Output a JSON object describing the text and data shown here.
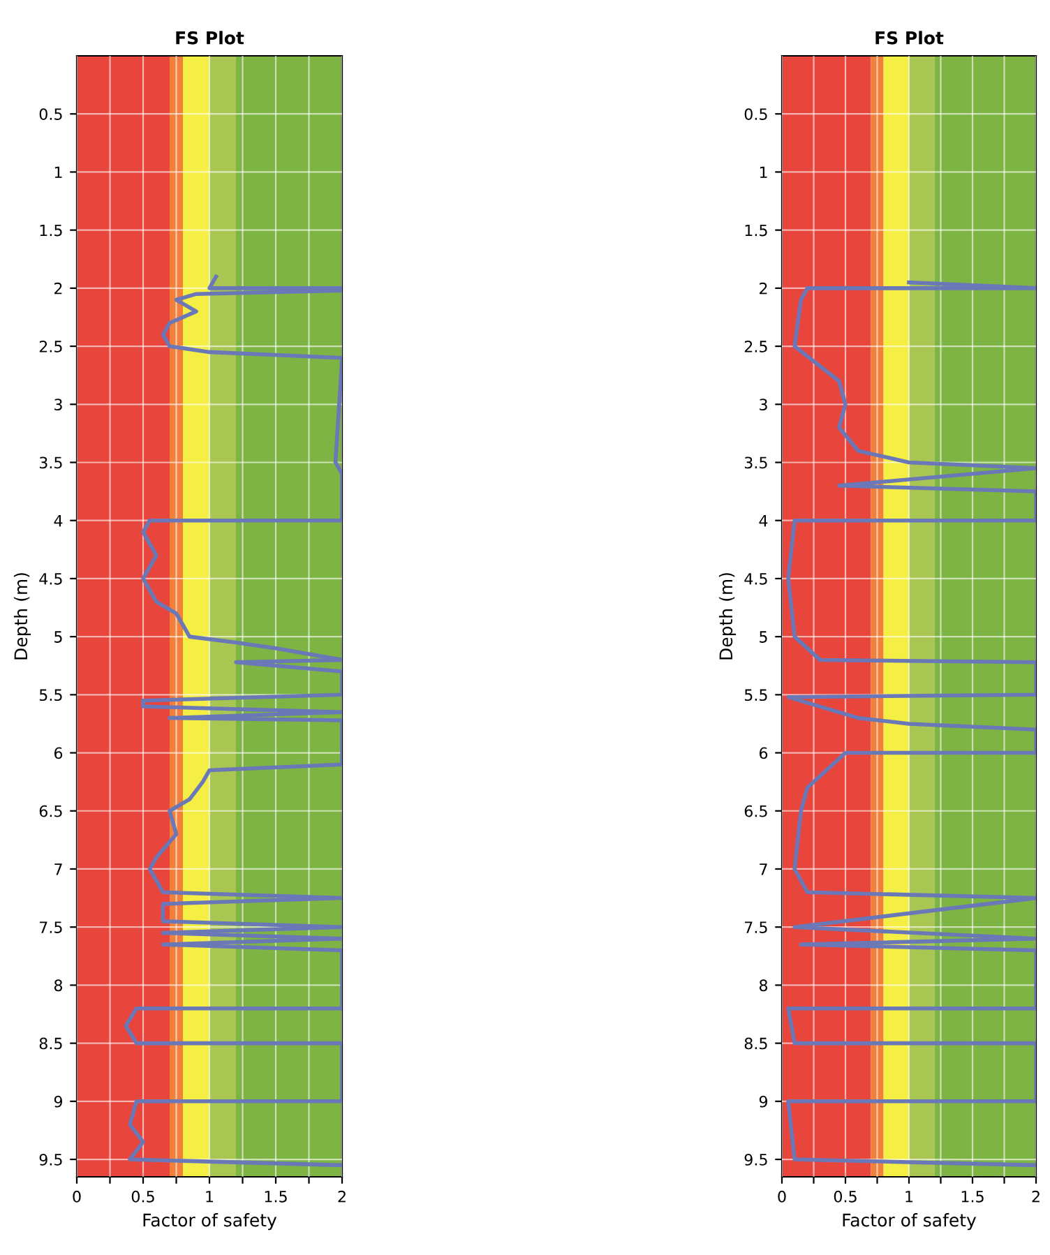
{
  "chart_data": [
    {
      "type": "line",
      "title": "FS Plot",
      "xlabel": "Factor of safety",
      "ylabel": "Depth (m)",
      "xlim": [
        0,
        2
      ],
      "xticks": [
        0,
        {
          "value": 0.25,
          "label": null
        },
        0.5,
        {
          "value": 0.75,
          "label": null
        },
        1,
        {
          "value": 1.25,
          "label": null
        },
        1.5,
        {
          "value": 1.75,
          "label": null
        },
        2
      ],
      "ylim": [
        9.65,
        0
      ],
      "yticks": [
        0.5,
        1,
        1.5,
        2,
        2.5,
        3,
        3.5,
        4,
        4.5,
        5,
        5.5,
        6,
        6.5,
        7,
        7.5,
        8,
        8.5,
        9,
        9.5
      ],
      "grid": true,
      "marker": "none",
      "line_style": "solid",
      "bands": [
        {
          "axis": "x",
          "from": 0,
          "to": 0.7,
          "color": "#e8453c"
        },
        {
          "axis": "x",
          "from": 0.7,
          "to": 0.8,
          "color": "#f2803a"
        },
        {
          "axis": "x",
          "from": 0.8,
          "to": 1.0,
          "color": "#f4ee45"
        },
        {
          "axis": "x",
          "from": 1.0,
          "to": 1.2,
          "color": "#a9c653"
        },
        {
          "axis": "x",
          "from": 1.2,
          "to": 2,
          "color": "#7db443"
        }
      ],
      "series": [
        {
          "color": "#6b78b8",
          "x": [
            1.05,
            1.0,
            2.0,
            2.0,
            0.9,
            0.75,
            0.9,
            0.7,
            0.65,
            0.7,
            1.0,
            2.0,
            1.95,
            2.0,
            2.0,
            0.55,
            0.5,
            0.6,
            0.5,
            0.6,
            0.75,
            0.8,
            0.85,
            1.2,
            1.5,
            2.0,
            1.2,
            2.0,
            2.0,
            0.5,
            0.5,
            2.0,
            0.7,
            2.0,
            2.0,
            1.0,
            0.95,
            0.85,
            0.7,
            0.75,
            0.6,
            0.55,
            0.65,
            2.0,
            0.65,
            0.65,
            2.0,
            0.65,
            2.0,
            0.65,
            2.0,
            2.0,
            0.45,
            0.37,
            0.45,
            2.0,
            2.0,
            0.45,
            0.4,
            0.5,
            0.4,
            2.0
          ],
          "values": [
            1.9,
            2.0,
            2.0,
            2.02,
            2.05,
            2.1,
            2.2,
            2.3,
            2.4,
            2.5,
            2.55,
            2.6,
            3.5,
            3.6,
            4.0,
            4.0,
            4.1,
            4.3,
            4.5,
            4.7,
            4.8,
            4.9,
            5.0,
            5.05,
            5.1,
            5.2,
            5.22,
            5.3,
            5.5,
            5.55,
            5.6,
            5.65,
            5.7,
            5.72,
            6.1,
            6.15,
            6.25,
            6.4,
            6.5,
            6.7,
            6.9,
            7.0,
            7.2,
            7.25,
            7.3,
            7.45,
            7.5,
            7.55,
            7.6,
            7.65,
            7.7,
            8.2,
            8.2,
            8.35,
            8.5,
            8.5,
            9.0,
            9.0,
            9.2,
            9.35,
            9.5,
            9.55
          ]
        }
      ]
    },
    {
      "type": "line",
      "title": "FS Plot",
      "xlabel": "Factor of safety",
      "ylabel": "Depth (m)",
      "xlim": [
        0,
        2
      ],
      "xticks": [
        0,
        {
          "value": 0.25,
          "label": null
        },
        0.5,
        {
          "value": 0.75,
          "label": null
        },
        1,
        {
          "value": 1.25,
          "label": null
        },
        1.5,
        {
          "value": 1.75,
          "label": null
        },
        2
      ],
      "ylim": [
        9.65,
        0
      ],
      "yticks": [
        0.5,
        1,
        1.5,
        2,
        2.5,
        3,
        3.5,
        4,
        4.5,
        5,
        5.5,
        6,
        6.5,
        7,
        7.5,
        8,
        8.5,
        9,
        9.5
      ],
      "grid": true,
      "marker": "none",
      "line_style": "solid",
      "bands": [
        {
          "axis": "x",
          "from": 0,
          "to": 0.7,
          "color": "#e8453c"
        },
        {
          "axis": "x",
          "from": 0.7,
          "to": 0.8,
          "color": "#f2803a"
        },
        {
          "axis": "x",
          "from": 0.8,
          "to": 1.0,
          "color": "#f4ee45"
        },
        {
          "axis": "x",
          "from": 1.0,
          "to": 1.2,
          "color": "#a9c653"
        },
        {
          "axis": "x",
          "from": 1.2,
          "to": 2,
          "color": "#7db443"
        }
      ],
      "series": [
        {
          "color": "#6b78b8",
          "x": [
            1.0,
            2.0,
            0.2,
            0.15,
            0.1,
            0.45,
            0.5,
            0.45,
            0.6,
            1.0,
            2.0,
            0.45,
            2.0,
            2.0,
            0.1,
            0.05,
            0.1,
            0.3,
            2.0,
            2.0,
            0.05,
            0.6,
            1.0,
            2.0,
            2.0,
            0.5,
            0.2,
            0.15,
            0.1,
            0.2,
            2.0,
            0.1,
            2.0,
            0.15,
            2.0,
            2.0,
            0.05,
            0.1,
            2.0,
            2.0,
            0.05,
            0.1,
            2.0
          ],
          "values": [
            1.95,
            2.0,
            2.0,
            2.1,
            2.5,
            2.8,
            3.0,
            3.2,
            3.4,
            3.5,
            3.55,
            3.7,
            3.75,
            4.0,
            4.0,
            4.5,
            5.0,
            5.2,
            5.22,
            5.5,
            5.52,
            5.7,
            5.75,
            5.8,
            6.0,
            6.0,
            6.3,
            6.5,
            7.0,
            7.2,
            7.25,
            7.5,
            7.6,
            7.65,
            7.7,
            8.2,
            8.2,
            8.5,
            8.5,
            9.0,
            9.0,
            9.5,
            9.55
          ]
        }
      ]
    }
  ]
}
